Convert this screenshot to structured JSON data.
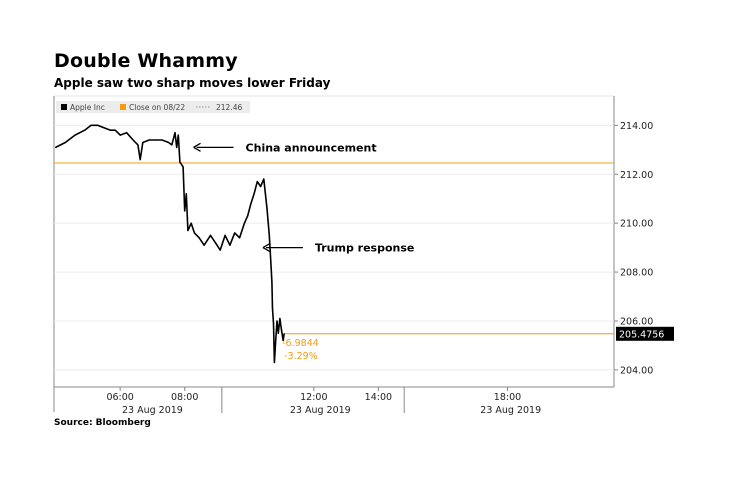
{
  "chart_data": {
    "type": "line",
    "title": "Double Whammy",
    "subtitle": "Apple saw two sharp moves lower Friday",
    "source": "Source: Bloomberg",
    "legend": {
      "series_label": "Apple Inc",
      "reference_label": "Close on 08/22",
      "reference_value": "212.46"
    },
    "reference_line": {
      "value": 212.46,
      "color": "#f39c12"
    },
    "last_value": {
      "value": 205.4756,
      "label": "205.4756"
    },
    "change": {
      "abs": "-6.9844",
      "pct": "-3.29%"
    },
    "ylim": [
      203.3,
      215.2
    ],
    "y_ticks": [
      {
        "value": 204,
        "label": "204.00"
      },
      {
        "value": 206,
        "label": "206.00"
      },
      {
        "value": 208,
        "label": "208.00"
      },
      {
        "value": 210,
        "label": "210.00"
      },
      {
        "value": 212,
        "label": "212.00"
      },
      {
        "value": 214,
        "label": "214.00"
      }
    ],
    "x_ticks": [
      {
        "hour": 6,
        "label": "06:00"
      },
      {
        "hour": 8,
        "label": "08:00"
      },
      {
        "hour": 12,
        "label": "12:00"
      },
      {
        "hour": 14,
        "label": "14:00"
      },
      {
        "hour": 18,
        "label": "18:00"
      }
    ],
    "date_labels": [
      {
        "hour": 7,
        "label": "23 Aug 2019"
      },
      {
        "hour": 12.2,
        "label": "23 Aug 2019"
      },
      {
        "hour": 18.1,
        "label": "23 Aug 2019"
      }
    ],
    "annotations": [
      {
        "text": "China announcement",
        "at_hour": 8.15,
        "at_value": 213.1
      },
      {
        "text": "Trump response",
        "at_hour": 10.3,
        "at_value": 209.0
      }
    ],
    "series": [
      {
        "name": "Apple Inc",
        "color": "#000000",
        "points": [
          [
            4.0,
            213.1
          ],
          [
            4.3,
            213.3
          ],
          [
            4.6,
            213.6
          ],
          [
            4.9,
            213.8
          ],
          [
            5.1,
            214.0
          ],
          [
            5.3,
            214.0
          ],
          [
            5.5,
            213.9
          ],
          [
            5.7,
            213.8
          ],
          [
            5.85,
            213.8
          ],
          [
            6.0,
            213.6
          ],
          [
            6.2,
            213.7
          ],
          [
            6.4,
            213.4
          ],
          [
            6.55,
            213.2
          ],
          [
            6.62,
            212.6
          ],
          [
            6.7,
            213.3
          ],
          [
            6.9,
            213.4
          ],
          [
            7.1,
            213.4
          ],
          [
            7.3,
            213.4
          ],
          [
            7.5,
            213.3
          ],
          [
            7.6,
            213.2
          ],
          [
            7.7,
            213.7
          ],
          [
            7.75,
            213.1
          ],
          [
            7.8,
            213.6
          ],
          [
            7.85,
            212.5
          ],
          [
            7.95,
            212.3
          ],
          [
            8.0,
            210.5
          ],
          [
            8.05,
            211.2
          ],
          [
            8.1,
            209.7
          ],
          [
            8.2,
            210.0
          ],
          [
            8.3,
            209.6
          ],
          [
            8.45,
            209.4
          ],
          [
            8.6,
            209.1
          ],
          [
            8.8,
            209.5
          ],
          [
            8.95,
            209.2
          ],
          [
            9.1,
            208.9
          ],
          [
            9.25,
            209.5
          ],
          [
            9.4,
            209.1
          ],
          [
            9.55,
            209.6
          ],
          [
            9.7,
            209.4
          ],
          [
            9.85,
            210.0
          ],
          [
            9.95,
            210.3
          ],
          [
            10.05,
            210.8
          ],
          [
            10.15,
            211.2
          ],
          [
            10.25,
            211.7
          ],
          [
            10.35,
            211.5
          ],
          [
            10.45,
            211.8
          ],
          [
            10.5,
            211.2
          ],
          [
            10.55,
            210.6
          ],
          [
            10.62,
            209.5
          ],
          [
            10.65,
            208.8
          ],
          [
            10.7,
            207.6
          ],
          [
            10.72,
            206.5
          ],
          [
            10.75,
            205.9
          ],
          [
            10.78,
            204.3
          ],
          [
            10.82,
            205.2
          ],
          [
            10.86,
            206.0
          ],
          [
            10.9,
            205.5
          ],
          [
            10.95,
            206.1
          ],
          [
            11.0,
            205.6
          ],
          [
            11.05,
            205.2
          ],
          [
            11.08,
            205.48
          ]
        ]
      }
    ]
  }
}
